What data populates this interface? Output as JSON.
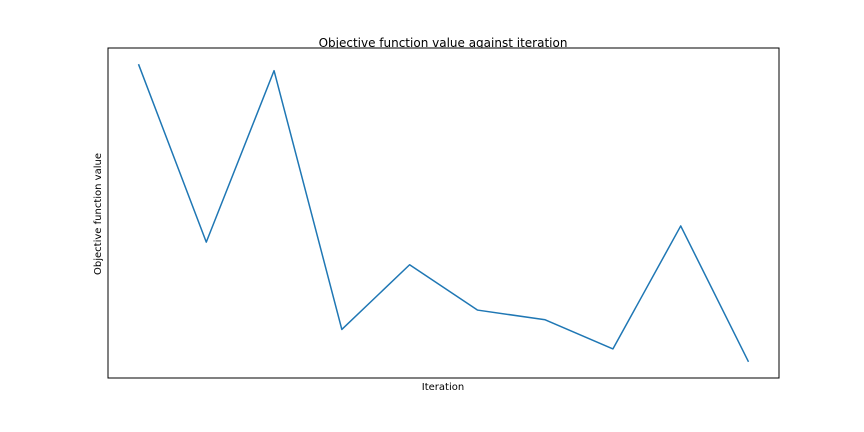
{
  "chart_data": {
    "type": "line",
    "title": "Objective function value against iteration",
    "xlabel": "Iteration",
    "ylabel": "Objective function value",
    "x": [
      0,
      1,
      2,
      3,
      4,
      5,
      6,
      7,
      8,
      9
    ],
    "series": [
      {
        "values": [
          0.98,
          0.43,
          0.96,
          0.16,
          0.36,
          0.22,
          0.19,
          0.1,
          0.48,
          0.06
        ],
        "color": "#1f77b4"
      }
    ],
    "xlim": [
      -0.45,
      9.45
    ],
    "ylim": [
      0.01,
      1.03
    ],
    "xticks_visible": false,
    "yticks_visible": false,
    "grid": false
  }
}
